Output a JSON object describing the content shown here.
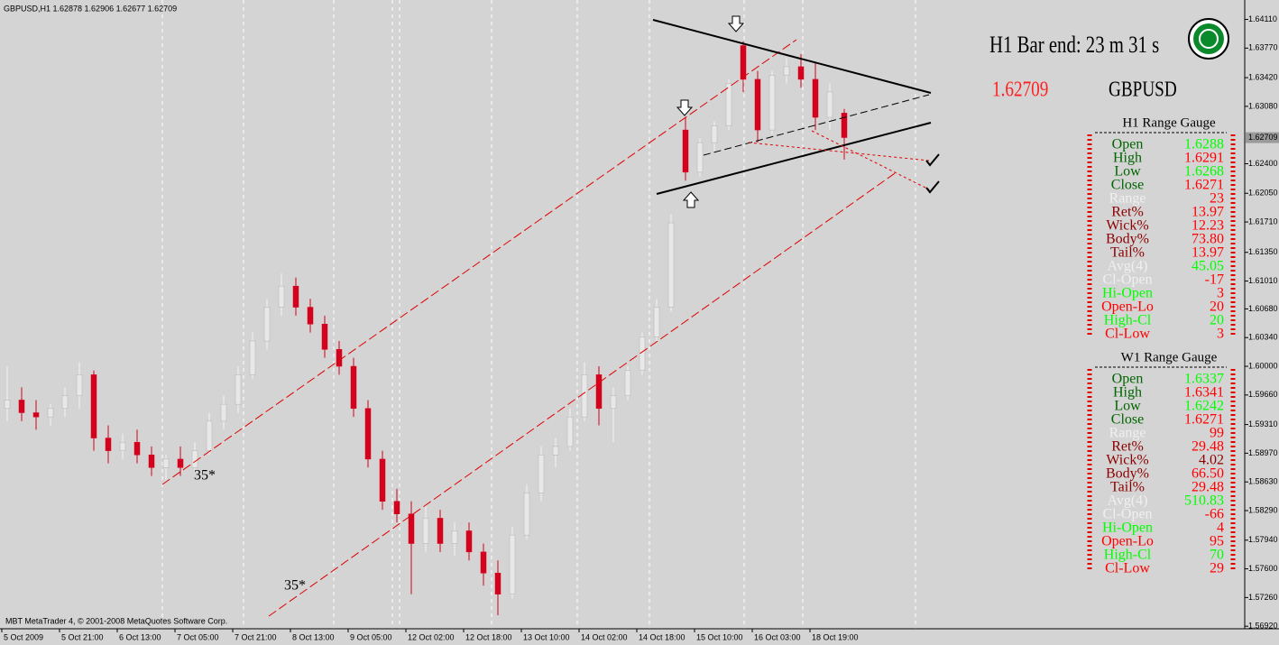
{
  "header": {
    "symbol_line": "GBPUSD,H1  1.62878 1.62906 1.62677 1.62709",
    "copyright": "MBT MetaTrader 4, © 2001-2008 MetaQuotes Software Corp."
  },
  "info": {
    "bar_end": "H1 Bar end: 23 m 31 s",
    "price": "1.62709",
    "symbol": "GBPUSD"
  },
  "annotations": [
    "35*",
    "35*"
  ],
  "chart_data": {
    "type": "candlestick",
    "categories": [
      "5 Oct 2009",
      null,
      null,
      null,
      "5 Oct 21:00",
      null,
      null,
      null,
      "6 Oct 13:00",
      null,
      null,
      null,
      "7 Oct 05:00",
      null,
      null,
      null,
      "7 Oct 21:00",
      null,
      null,
      null,
      "8 Oct 13:00",
      null,
      null,
      null,
      "9 Oct 05:00",
      null,
      null,
      null,
      "12 Oct 02:00",
      null,
      null,
      null,
      "12 Oct 18:00",
      null,
      null,
      null,
      "13 Oct 10:00",
      null,
      null,
      null,
      "14 Oct 02:00",
      null,
      null,
      null,
      "14 Oct 18:00",
      null,
      null,
      null,
      "15 Oct 10:00",
      null,
      null,
      null,
      "16 Oct 03:00",
      null,
      null,
      null,
      "18 Oct 19:00",
      null,
      null
    ],
    "open": [
      1.595,
      1.596,
      1.5945,
      1.594,
      1.595,
      1.5965,
      1.599,
      1.5915,
      1.59,
      1.591,
      1.5895,
      1.588,
      1.589,
      1.588,
      1.59,
      1.5935,
      1.5955,
      1.599,
      1.603,
      1.607,
      1.6095,
      1.607,
      1.605,
      1.602,
      1.6,
      1.595,
      1.589,
      1.584,
      1.5825,
      1.579,
      1.582,
      1.579,
      1.5805,
      1.578,
      1.5755,
      1.573,
      1.58,
      1.585,
      1.5895,
      1.5905,
      1.594,
      1.599,
      1.595,
      1.5965,
      1.5995,
      1.6035,
      1.607,
      1.628,
      1.623,
      1.6265,
      1.6285,
      1.638,
      1.634,
      1.628,
      1.6345,
      1.6355,
      1.634,
      1.6295,
      1.63
    ],
    "high": [
      1.6,
      1.5975,
      1.596,
      1.5955,
      1.5975,
      1.6005,
      1.5995,
      1.593,
      1.592,
      1.5925,
      1.5905,
      1.5895,
      1.5905,
      1.591,
      1.5945,
      1.5965,
      1.6,
      1.604,
      1.608,
      1.611,
      1.6105,
      1.608,
      1.606,
      1.603,
      1.601,
      1.596,
      1.59,
      1.5855,
      1.584,
      1.5835,
      1.583,
      1.5815,
      1.5815,
      1.579,
      1.577,
      1.581,
      1.586,
      1.5905,
      1.5915,
      1.595,
      1.6005,
      1.6,
      1.5975,
      1.6,
      1.604,
      1.608,
      1.618,
      1.6295,
      1.627,
      1.629,
      1.634,
      1.6385,
      1.635,
      1.635,
      1.6365,
      1.637,
      1.636,
      1.6335,
      1.6305
    ],
    "low": [
      1.5935,
      1.5935,
      1.5925,
      1.593,
      1.594,
      1.595,
      1.59,
      1.5885,
      1.589,
      1.5885,
      1.587,
      1.5865,
      1.587,
      1.5875,
      1.5895,
      1.5925,
      1.5945,
      1.5985,
      1.602,
      1.606,
      1.606,
      1.604,
      1.601,
      1.599,
      1.594,
      1.588,
      1.583,
      1.5815,
      1.573,
      1.578,
      1.578,
      1.5775,
      1.577,
      1.574,
      1.5705,
      1.5725,
      1.5795,
      1.584,
      1.588,
      1.59,
      1.5935,
      1.593,
      1.591,
      1.596,
      1.599,
      1.603,
      1.6065,
      1.622,
      1.6225,
      1.6255,
      1.628,
      1.6325,
      1.6265,
      1.6275,
      1.6335,
      1.633,
      1.628,
      1.628,
      1.6245
    ],
    "close": [
      1.596,
      1.5945,
      1.594,
      1.595,
      1.5965,
      1.599,
      1.5915,
      1.59,
      1.591,
      1.5895,
      1.588,
      1.589,
      1.588,
      1.59,
      1.5935,
      1.5955,
      1.599,
      1.603,
      1.607,
      1.6095,
      1.607,
      1.605,
      1.602,
      1.6,
      1.595,
      1.589,
      1.584,
      1.5825,
      1.579,
      1.582,
      1.579,
      1.5805,
      1.578,
      1.5755,
      1.573,
      1.58,
      1.585,
      1.5895,
      1.5905,
      1.594,
      1.599,
      1.595,
      1.5965,
      1.5995,
      1.6035,
      1.607,
      1.617,
      1.623,
      1.6265,
      1.6285,
      1.6335,
      1.634,
      1.628,
      1.6345,
      1.6355,
      1.634,
      1.6295,
      1.6325,
      1.6271
    ],
    "up_color": "#e8e8e8",
    "down_color": "#d4001c",
    "ylim": [
      1.5689,
      1.6434
    ],
    "yticks": [
      {
        "value": 1.6411,
        "label": "1.64110"
      },
      {
        "value": 1.6377,
        "label": "1.63770"
      },
      {
        "value": 1.6342,
        "label": "1.63420"
      },
      {
        "value": 1.6308,
        "label": "1.63080"
      },
      {
        "value": 1.624,
        "label": "1.62400"
      },
      {
        "value": 1.6205,
        "label": "1.62050"
      },
      {
        "value": 1.6171,
        "label": "1.61710"
      },
      {
        "value": 1.6135,
        "label": "1.61350"
      },
      {
        "value": 1.6101,
        "label": "1.61010"
      },
      {
        "value": 1.6068,
        "label": "1.60680"
      },
      {
        "value": 1.6034,
        "label": "1.60340"
      },
      {
        "value": 1.6,
        "label": "1.60000"
      },
      {
        "value": 1.5966,
        "label": "1.59660"
      },
      {
        "value": 1.5931,
        "label": "1.59310"
      },
      {
        "value": 1.5897,
        "label": "1.58970"
      },
      {
        "value": 1.5863,
        "label": "1.58630"
      },
      {
        "value": 1.5829,
        "label": "1.58290"
      },
      {
        "value": 1.5794,
        "label": "1.57940"
      },
      {
        "value": 1.576,
        "label": "1.57600"
      },
      {
        "value": 1.5726,
        "label": "1.57260"
      },
      {
        "value": 1.5692,
        "label": "1.56920"
      }
    ],
    "bid": 1.62709
  },
  "gauges": [
    {
      "title": "H1 Range Gauge",
      "rows": [
        {
          "label": "Open",
          "value": "1.6288",
          "label_color": "#006400",
          "value_color": "#00ff00"
        },
        {
          "label": "High",
          "value": "1.6291",
          "label_color": "#006400",
          "value_color": "#ff0000"
        },
        {
          "label": "Low",
          "value": "1.6268",
          "label_color": "#006400",
          "value_color": "#00ff00"
        },
        {
          "label": "Close",
          "value": "1.6271",
          "label_color": "#006400",
          "value_color": "#ff0000"
        },
        {
          "label": "Range",
          "value": "23",
          "label_color": "#f0f0f0",
          "value_color": "#ff0000"
        },
        {
          "label": "Ret%",
          "value": "13.97",
          "label_color": "#8b0000",
          "value_color": "#ff0000"
        },
        {
          "label": "Wick%",
          "value": "12.23",
          "label_color": "#8b0000",
          "value_color": "#ff0000"
        },
        {
          "label": "Body%",
          "value": "73.80",
          "label_color": "#8b0000",
          "value_color": "#ff0000"
        },
        {
          "label": "Tail%",
          "value": "13.97",
          "label_color": "#8b0000",
          "value_color": "#ff0000"
        },
        {
          "label": "Avg(4)",
          "value": "45.05",
          "label_color": "#f0f0f0",
          "value_color": "#00ff00"
        },
        {
          "label": "Cl-Open",
          "value": "-17",
          "label_color": "#f0f0f0",
          "value_color": "#ff0000"
        },
        {
          "label": "Hi-Open",
          "value": "3",
          "label_color": "#00ff00",
          "value_color": "#ff0000"
        },
        {
          "label": "Open-Lo",
          "value": "20",
          "label_color": "#ff0000",
          "value_color": "#ff0000"
        },
        {
          "label": "High-Cl",
          "value": "20",
          "label_color": "#00ff00",
          "value_color": "#00ff00"
        },
        {
          "label": "Cl-Low",
          "value": "3",
          "label_color": "#ff0000",
          "value_color": "#ff0000"
        }
      ]
    },
    {
      "title": "W1 Range Gauge",
      "rows": [
        {
          "label": "Open",
          "value": "1.6337",
          "label_color": "#006400",
          "value_color": "#00ff00"
        },
        {
          "label": "High",
          "value": "1.6341",
          "label_color": "#006400",
          "value_color": "#ff0000"
        },
        {
          "label": "Low",
          "value": "1.6242",
          "label_color": "#006400",
          "value_color": "#00ff00"
        },
        {
          "label": "Close",
          "value": "1.6271",
          "label_color": "#006400",
          "value_color": "#ff0000"
        },
        {
          "label": "Range",
          "value": "99",
          "label_color": "#f0f0f0",
          "value_color": "#ff0000"
        },
        {
          "label": "Ret%",
          "value": "29.48",
          "label_color": "#8b0000",
          "value_color": "#ff0000"
        },
        {
          "label": "Wick%",
          "value": "4.02",
          "label_color": "#8b0000",
          "value_color": "#8b0000"
        },
        {
          "label": "Body%",
          "value": "66.50",
          "label_color": "#8b0000",
          "value_color": "#ff0000"
        },
        {
          "label": "Tail%",
          "value": "29.48",
          "label_color": "#8b0000",
          "value_color": "#ff0000"
        },
        {
          "label": "Avg(4)",
          "value": "510.83",
          "label_color": "#f0f0f0",
          "value_color": "#00ff00"
        },
        {
          "label": "Cl-Open",
          "value": "-66",
          "label_color": "#f0f0f0",
          "value_color": "#ff0000"
        },
        {
          "label": "Hi-Open",
          "value": "4",
          "label_color": "#00ff00",
          "value_color": "#ff0000"
        },
        {
          "label": "Open-Lo",
          "value": "95",
          "label_color": "#ff0000",
          "value_color": "#ff0000"
        },
        {
          "label": "High-Cl",
          "value": "70",
          "label_color": "#00ff00",
          "value_color": "#00ff00"
        },
        {
          "label": "Cl-Low",
          "value": "29",
          "label_color": "#ff0000",
          "value_color": "#ff0000"
        }
      ]
    }
  ]
}
